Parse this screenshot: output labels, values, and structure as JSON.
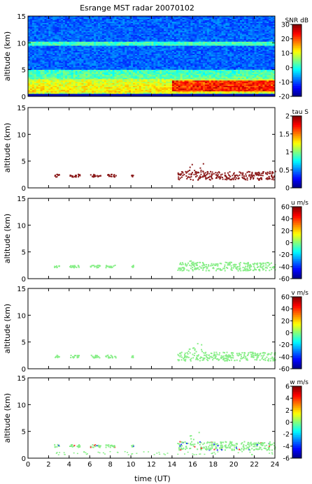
{
  "chart_data": {
    "type": "heatmap",
    "title": "Esrange MST radar 20070102",
    "xlabel": "time (UT)",
    "xlim": [
      0,
      24
    ],
    "xticks": [
      0,
      2,
      4,
      6,
      8,
      10,
      12,
      14,
      16,
      18,
      20,
      22,
      24
    ],
    "panels": [
      {
        "id": "snr",
        "ylabel": "altitude (km)",
        "ylim": [
          0,
          15
        ],
        "yticks": [
          0,
          5,
          10,
          15
        ],
        "colorbar_label": "SNR dB",
        "colorbar_range": [
          -20,
          30
        ],
        "colorbar_ticks": [
          -20,
          -10,
          0,
          10,
          20,
          30
        ],
        "description_layers": [
          {
            "t": [
              0,
              24
            ],
            "alt": [
              0.5,
              5
            ],
            "level": "high"
          },
          {
            "t": [
              14,
              24
            ],
            "alt": [
              1,
              3
            ],
            "level": "max"
          },
          {
            "t": [
              0,
              24
            ],
            "alt": [
              9.5,
              10
            ],
            "level": "medium"
          }
        ]
      },
      {
        "id": "tau",
        "ylabel": "altitude (km)",
        "ylim": [
          0,
          15
        ],
        "yticks": [
          0,
          5,
          10,
          15
        ],
        "colorbar_label": "tau S",
        "colorbar_range": [
          0,
          2
        ],
        "colorbar_ticks": [
          0,
          0.5,
          1,
          1.5,
          2
        ],
        "fill_color": "#8b1a1a"
      },
      {
        "id": "u",
        "ylabel": "altitude (km)",
        "ylim": [
          0,
          15
        ],
        "yticks": [
          0,
          5,
          10,
          15
        ],
        "colorbar_label": "u m/s",
        "colorbar_range": [
          -60,
          60
        ],
        "colorbar_ticks": [
          -60,
          -40,
          -20,
          0,
          20,
          40,
          60
        ],
        "fill_color": "#88ee88"
      },
      {
        "id": "v",
        "ylabel": "altitude (km)",
        "ylim": [
          0,
          15
        ],
        "yticks": [
          0,
          5,
          10,
          15
        ],
        "colorbar_label": "v m/s",
        "colorbar_range": [
          -60,
          60
        ],
        "colorbar_ticks": [
          -60,
          -40,
          -20,
          0,
          20,
          40,
          60
        ],
        "fill_color": "#88ee88"
      },
      {
        "id": "w",
        "ylabel": "altitude (km)",
        "ylim": [
          0,
          15
        ],
        "yticks": [
          0,
          5,
          10,
          15
        ],
        "colorbar_label": "w m/s",
        "colorbar_range": [
          -6,
          6
        ],
        "colorbar_ticks": [
          -6,
          -4,
          -2,
          0,
          2,
          4,
          6
        ],
        "fill_color": "#88ee88"
      }
    ],
    "sparse_echo_segments": [
      {
        "t": [
          2.5,
          3.0
        ],
        "alt": 2.2
      },
      {
        "t": [
          4.0,
          5.0
        ],
        "alt": 2.2
      },
      {
        "t": [
          6.0,
          7.0
        ],
        "alt": 2.2
      },
      {
        "t": [
          7.5,
          8.5
        ],
        "alt": 2.2
      },
      {
        "t": [
          10.0,
          10.2
        ],
        "alt": 2.2
      },
      {
        "t": [
          14.5,
          24.0
        ],
        "alt": 2.2
      }
    ]
  }
}
